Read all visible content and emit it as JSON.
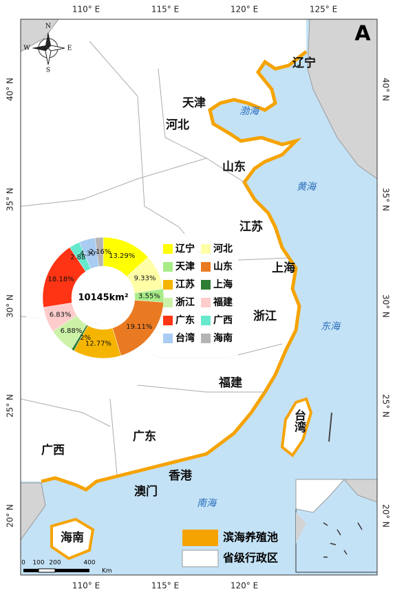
{
  "map": {
    "panel_label": "A",
    "top_lon_ticks": [
      "110° E",
      "115° E",
      "120° E",
      "125° E"
    ],
    "bottom_lon_ticks": [
      "110° E",
      "115° E",
      "120° E"
    ],
    "left_lat_ticks": [
      "40° N",
      "35° N",
      "30° N",
      "25° N",
      "20° N"
    ],
    "right_lat_ticks": [
      "40° N",
      "35° N",
      "30° N",
      "25° N",
      "20° N"
    ],
    "compass": [
      "N",
      "E",
      "S",
      "W"
    ],
    "provinces": [
      "辽宁",
      "天津",
      "河北",
      "山东",
      "江苏",
      "上海",
      "浙江",
      "福建",
      "台湾",
      "广东",
      "广西",
      "香港",
      "澳门",
      "海南"
    ],
    "seas": [
      "渤海",
      "黄海",
      "东海",
      "南海"
    ],
    "legend": [
      "滨海养殖池",
      "省级行政区"
    ],
    "scale": {
      "labels": [
        0,
        100,
        200,
        400
      ],
      "unit": "Km"
    }
  },
  "chart_data": {
    "type": "donut",
    "center_label": "10145km²",
    "categories": [
      "辽宁",
      "河北",
      "天津",
      "山东",
      "江苏",
      "上海",
      "浙江",
      "福建",
      "广东",
      "广西",
      "台湾",
      "海南"
    ],
    "values": [
      13.29,
      9.33,
      3.55,
      19.11,
      12.77,
      0.72,
      6.88,
      6.83,
      18.18,
      2.88,
      4.3,
      2.16
    ],
    "value_labels": [
      "13.29%",
      "9.33%",
      "3.55%",
      "19.11%",
      "12.77%",
      "0.72%",
      "6.88%",
      "6.83%",
      "18.18%",
      "2.88%",
      "4.30%",
      "2.16%"
    ],
    "colors": [
      "#ffff00",
      "#ffffa8",
      "#a8ec88",
      "#ea7a22",
      "#f5b400",
      "#2e7d32",
      "#ccf2a8",
      "#ffcccc",
      "#ff3414",
      "#66e8cc",
      "#a8ccf2",
      "#b4b4b4"
    ]
  }
}
